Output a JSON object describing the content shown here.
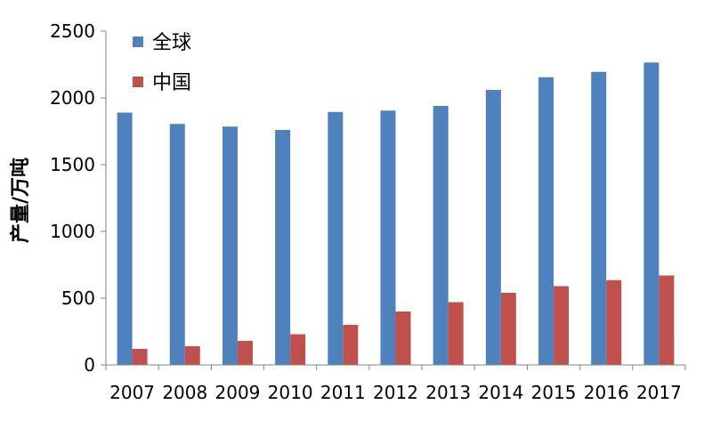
{
  "chart_data": {
    "type": "bar",
    "title": "",
    "xlabel": "",
    "ylabel": "产量/万吨",
    "categories": [
      "2007",
      "2008",
      "2009",
      "2010",
      "2011",
      "2012",
      "2013",
      "2014",
      "2015",
      "2016",
      "2017"
    ],
    "series": [
      {
        "name": "全球",
        "color": "#4F81BD",
        "values": [
          1890,
          1805,
          1785,
          1760,
          1895,
          1905,
          1940,
          2060,
          2155,
          2195,
          2265
        ]
      },
      {
        "name": "中国",
        "color": "#C0504D",
        "values": [
          120,
          140,
          180,
          230,
          300,
          400,
          470,
          540,
          590,
          635,
          670
        ]
      }
    ],
    "ylim": [
      0,
      2500
    ],
    "yticks": [
      0,
      500,
      1000,
      1500,
      2000,
      2500
    ],
    "grid": false,
    "legend_position": "top-left"
  }
}
